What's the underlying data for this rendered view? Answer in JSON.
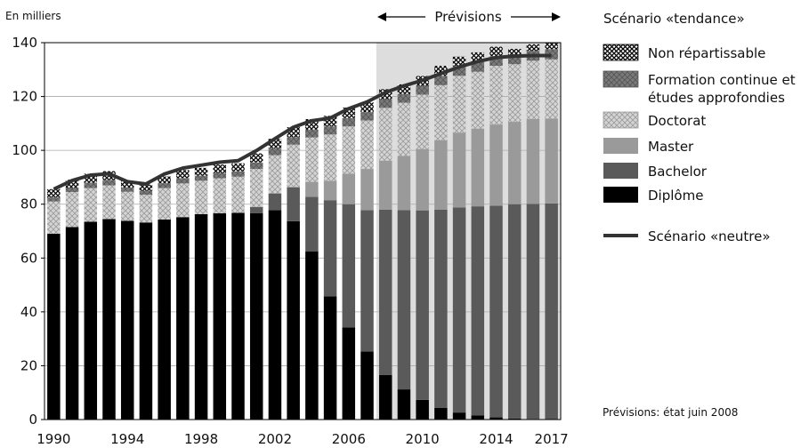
{
  "chart_data": {
    "type": "bar",
    "stacked": true,
    "ylabel": "En milliers",
    "ylim": [
      0,
      140
    ],
    "yticks": [
      0,
      20,
      40,
      60,
      80,
      100,
      120,
      140
    ],
    "x": [
      1990,
      1991,
      1992,
      1993,
      1994,
      1995,
      1996,
      1997,
      1998,
      1999,
      2000,
      2001,
      2002,
      2003,
      2004,
      2005,
      2006,
      2007,
      2008,
      2009,
      2010,
      2011,
      2012,
      2013,
      2014,
      2015,
      2016,
      2017
    ],
    "xtick_labels": [
      "1990",
      "1994",
      "1998",
      "2002",
      "2006",
      "2010",
      "2014",
      "2017"
    ],
    "forecast_label": "Prévisions",
    "forecast_start": 2008,
    "legend_title": "Scénario «tendance»",
    "line_label": "Scénario «neutre»",
    "footnote": "Prévisions: état juin 2008",
    "series": [
      {
        "name": "Diplôme",
        "color": "#000000",
        "values": [
          69,
          71.5,
          73.5,
          74.5,
          73.8,
          73.2,
          74.3,
          75.2,
          76.3,
          76.6,
          76.8,
          76.7,
          77.8,
          73.7,
          62.4,
          45.8,
          34.2,
          25.3,
          16.6,
          11.2,
          7.3,
          4.3,
          2.6,
          1.5,
          0.8,
          0.4,
          0.2,
          0.1
        ]
      },
      {
        "name": "Bachelor",
        "color": "#5a5a5a",
        "values": [
          0,
          0,
          0,
          0,
          0,
          0,
          0,
          0,
          0,
          0,
          0,
          2.3,
          6.2,
          12.5,
          20.3,
          35.7,
          45.8,
          52.5,
          61.4,
          66.6,
          70.4,
          73.7,
          76.2,
          77.7,
          78.6,
          79.6,
          79.9,
          80.2
        ]
      },
      {
        "name": "Master",
        "color": "#9a9a9a",
        "values": [
          0,
          0,
          0,
          0,
          0,
          0,
          0,
          0,
          0,
          0,
          0,
          0,
          0,
          0.3,
          5.6,
          7.2,
          11.4,
          15.3,
          18.2,
          20.1,
          22.8,
          25.8,
          27.8,
          28.9,
          30.2,
          30.6,
          31.6,
          31.5
        ]
      },
      {
        "name": "Doctorat",
        "color": "#c9c9c9",
        "values": [
          12,
          13,
          12.5,
          12.5,
          10.8,
          10.3,
          11.7,
          12.5,
          12.4,
          13,
          13.4,
          14.1,
          14.2,
          15.6,
          16.5,
          17.2,
          17.5,
          18,
          19.6,
          19.8,
          20.2,
          20.4,
          21.1,
          21.1,
          21.8,
          21.4,
          21.6,
          22
        ]
      },
      {
        "name": "Formation continue et études approfondies",
        "color": "#7a7a7a",
        "values": [
          1.5,
          1.5,
          2,
          2,
          1.6,
          1.5,
          1.8,
          2,
          1.9,
          2,
          2,
          2.4,
          2.6,
          2.8,
          2.9,
          3,
          3.1,
          3.1,
          3.2,
          3.3,
          3.3,
          3.5,
          3.5,
          3.6,
          3.6,
          3.5,
          3.7,
          3.8
        ]
      },
      {
        "name": "Non répartissable",
        "color": "#000000",
        "values": [
          3.1,
          3.1,
          3.3,
          3.3,
          2.5,
          2.3,
          2.5,
          3,
          2.9,
          3.1,
          3,
          3.4,
          3.5,
          3.7,
          3.9,
          3.9,
          3.9,
          3.6,
          3.7,
          3.5,
          3.6,
          3.7,
          3.6,
          3.6,
          3.5,
          2.2,
          2.4,
          2.4
        ]
      }
    ],
    "line": {
      "name": "Scénario «neutre»",
      "color": "#333333",
      "values": [
        85.6,
        88.8,
        90.8,
        91.3,
        88.4,
        87.5,
        91.2,
        93.4,
        94.5,
        95.6,
        96.2,
        99.9,
        104.3,
        108.6,
        111,
        112,
        115.5,
        118,
        121.5,
        124,
        126,
        128.5,
        131,
        133,
        134.5,
        135,
        135.2,
        135.2
      ]
    }
  }
}
